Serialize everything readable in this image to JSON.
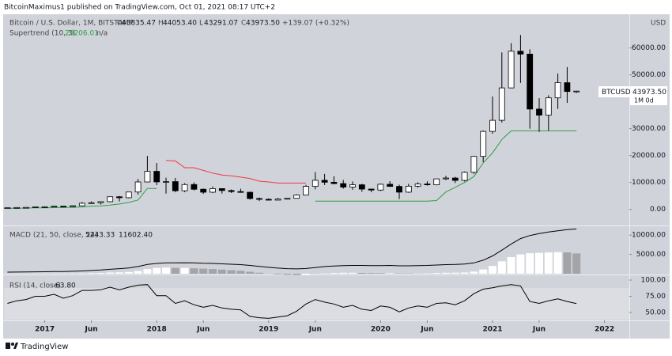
{
  "header": {
    "published": "BitcoinMaximus1 published on TradingView.com, Oct 01, 2021 08:17 UTC+2"
  },
  "footer": {
    "brand": "TradingView"
  },
  "chart_data": [
    {
      "type": "candlestick",
      "title": "Bitcoin / U.S. Dollar, 1M, BITSTAMP",
      "ohlc": [
        {
          "label": "O",
          "value": "43835.47"
        },
        {
          "label": "H",
          "value": "44053.40"
        },
        {
          "label": "L",
          "value": "43291.07"
        },
        {
          "label": "C",
          "value": "43973.50"
        }
      ],
      "change": "+139.07 (+0.32%)",
      "currency": "USD",
      "price_label": {
        "symbol": "BTCUSD",
        "value": "43973.50",
        "interval": "1M 0d"
      },
      "up_color": "#ffffff",
      "down_color": "#000000",
      "x": [
        "2016-09",
        "2016-10",
        "2016-11",
        "2016-12",
        "2017-01",
        "2017-02",
        "2017-03",
        "2017-04",
        "2017-05",
        "2017-06",
        "2017-07",
        "2017-08",
        "2017-09",
        "2017-10",
        "2017-11",
        "2017-12",
        "2018-01",
        "2018-02",
        "2018-03",
        "2018-04",
        "2018-05",
        "2018-06",
        "2018-07",
        "2018-08",
        "2018-09",
        "2018-10",
        "2018-11",
        "2018-12",
        "2019-01",
        "2019-02",
        "2019-03",
        "2019-04",
        "2019-05",
        "2019-06",
        "2019-07",
        "2019-08",
        "2019-09",
        "2019-10",
        "2019-11",
        "2019-12",
        "2020-01",
        "2020-02",
        "2020-03",
        "2020-04",
        "2020-05",
        "2020-06",
        "2020-07",
        "2020-08",
        "2020-09",
        "2020-10",
        "2020-11",
        "2020-12",
        "2021-01",
        "2021-02",
        "2021-03",
        "2021-04",
        "2021-05",
        "2021-06",
        "2021-07",
        "2021-08",
        "2021-09",
        "2021-10"
      ],
      "open": [
        573,
        609,
        698,
        743,
        963,
        966,
        1190,
        1071,
        1348,
        2286,
        2480,
        2875,
        4703,
        4338,
        6468,
        10200,
        14156,
        10221,
        10326,
        6925,
        9243,
        7486,
        6390,
        7730,
        7025,
        6625,
        6370,
        4040,
        3740,
        3457,
        3854,
        4105,
        5350,
        8560,
        10820,
        10090,
        9600,
        8290,
        9150,
        7550,
        7195,
        9350,
        8540,
        6410,
        8630,
        9450,
        9140,
        11350,
        11660,
        10780,
        13800,
        19700,
        28990,
        33110,
        45160,
        58800,
        57720,
        37300,
        35040,
        41460,
        47100,
        43835.47
      ],
      "high": [
        628,
        720,
        755,
        975,
        1150,
        1200,
        1290,
        1424,
        2760,
        2980,
        2916,
        4736,
        4979,
        6470,
        11300,
        19870,
        17250,
        11790,
        11700,
        9750,
        9990,
        7780,
        8507,
        7760,
        7400,
        7680,
        6615,
        4400,
        4110,
        4210,
        4120,
        5620,
        9100,
        13880,
        13200,
        12340,
        10950,
        10370,
        9500,
        7750,
        9580,
        10500,
        9190,
        9480,
        10080,
        10430,
        11440,
        12470,
        12080,
        14100,
        19850,
        29300,
        41950,
        58350,
        61800,
        64850,
        59500,
        41330,
        42400,
        50500,
        52900,
        44053.4
      ],
      "low": [
        570,
        605,
        681,
        742,
        751,
        918,
        891,
        1058,
        1348,
        2100,
        1830,
        2668,
        2972,
        4110,
        5500,
        10130,
        9035,
        5873,
        6430,
        6430,
        7050,
        5750,
        6070,
        5880,
        6100,
        6200,
        3650,
        3120,
        3320,
        3350,
        3700,
        4080,
        5330,
        7460,
        9050,
        9320,
        7700,
        7300,
        6520,
        6430,
        6850,
        8450,
        3850,
        6150,
        8100,
        8830,
        8970,
        10900,
        9820,
        10370,
        13200,
        17600,
        28130,
        32300,
        45000,
        47000,
        30000,
        28800,
        29280,
        37330,
        39600,
        43291.07
      ],
      "close": [
        609,
        698,
        743,
        963,
        966,
        1190,
        1071,
        1348,
        2286,
        2480,
        2875,
        4703,
        4338,
        6468,
        10200,
        14156,
        10221,
        10326,
        6925,
        9243,
        7486,
        6390,
        7730,
        7025,
        6625,
        6370,
        4040,
        3740,
        3457,
        3854,
        4105,
        5350,
        8560,
        10820,
        10090,
        9600,
        8290,
        9150,
        7550,
        7195,
        9350,
        8540,
        6410,
        8630,
        9450,
        9140,
        11350,
        11660,
        10780,
        13800,
        19700,
        28990,
        33110,
        45160,
        58800,
        57720,
        37300,
        35040,
        41460,
        47100,
        43830,
        43973.5
      ],
      "indicator": {
        "name": "Supertrend (10, 3)",
        "value_label": "29206.01",
        "extra": "n/a",
        "series": [
          {
            "color": "#2f9e44",
            "values": [
              400,
              450,
              500,
              560,
              600,
              650,
              700,
              750,
              900,
              1200,
              1300,
              1600,
              2000,
              2600,
              3500,
              7800,
              7800,
              null,
              null,
              null,
              null,
              null,
              null,
              null,
              null,
              null,
              null,
              null,
              null,
              null,
              null,
              null,
              null,
              3100,
              3100,
              3100,
              3100,
              3100,
              3100,
              3100,
              3100,
              3100,
              3100,
              3100,
              3100,
              3100,
              3300,
              6500,
              8200,
              10000,
              12200,
              17300,
              21000,
              26000,
              29206.01,
              29206.01,
              29206.01,
              29206.01,
              29206.01,
              29206.01,
              29206.01,
              29206.01
            ]
          },
          {
            "color": "#f23645",
            "values": [
              null,
              null,
              null,
              null,
              null,
              null,
              null,
              null,
              null,
              null,
              null,
              null,
              null,
              null,
              null,
              null,
              null,
              18200,
              18000,
              15500,
              15500,
              14500,
              13500,
              12800,
              12500,
              12000,
              11500,
              10500,
              10200,
              9800,
              9800,
              9800,
              9800,
              null,
              null,
              null,
              null,
              null,
              null,
              null,
              null,
              null,
              null,
              null,
              null,
              null,
              null,
              null,
              null,
              null,
              null,
              null,
              null,
              null,
              null,
              null,
              null,
              null,
              null,
              null,
              null,
              null
            ]
          }
        ]
      },
      "ylim": [
        -5970,
        72540
      ],
      "yticks": [
        {
          "value": 0,
          "label": "0.00"
        },
        {
          "value": 10000,
          "label": "10000.00"
        },
        {
          "value": 20000,
          "label": "20000.00"
        },
        {
          "value": 30000,
          "label": "30000.00"
        },
        {
          "value": 50000,
          "label": "50000.00"
        },
        {
          "value": 60000,
          "label": "60000.00"
        }
      ],
      "xticks": [
        {
          "value": "2017-01",
          "label": "2017"
        },
        {
          "value": "2017-06",
          "label": "Jun"
        },
        {
          "value": "2018-01",
          "label": "2018"
        },
        {
          "value": "2018-06",
          "label": "Jun"
        },
        {
          "value": "2019-01",
          "label": "2019"
        },
        {
          "value": "2019-06",
          "label": "Jun"
        },
        {
          "value": "2020-01",
          "label": "2020"
        },
        {
          "value": "2020-06",
          "label": "Jun"
        },
        {
          "value": "2021-01",
          "label": "2021"
        },
        {
          "value": "2021-06",
          "label": "Jun"
        },
        {
          "value": "2022-01",
          "label": "2022"
        }
      ]
    },
    {
      "type": "macd",
      "title": "MACD (21, 50, close, 24)",
      "histogram": {
        "value_label": "5243.33",
        "rising_color": "#ffffff",
        "falling_color": "#a3a3a8",
        "values": [
          20,
          30,
          30,
          40,
          40,
          50,
          60,
          80,
          120,
          160,
          200,
          300,
          350,
          450,
          700,
          1200,
          1500,
          1600,
          1500,
          1500,
          1400,
          1300,
          1200,
          1050,
          900,
          750,
          500,
          250,
          0,
          -200,
          -300,
          -350,
          -250,
          -50,
          100,
          200,
          250,
          250,
          200,
          150,
          120,
          150,
          50,
          40,
          80,
          110,
          180,
          250,
          270,
          320,
          550,
          1100,
          2000,
          3200,
          4300,
          5000,
          5300,
          5400,
          5500,
          5600,
          5500,
          5243.33
        ]
      },
      "line": {
        "value_label": "11602.40",
        "color": "#000000",
        "values": [
          400,
          420,
          440,
          480,
          500,
          540,
          570,
          620,
          720,
          830,
          950,
          1150,
          1300,
          1500,
          1850,
          2400,
          2650,
          2800,
          2800,
          2850,
          2800,
          2700,
          2650,
          2550,
          2450,
          2350,
          2150,
          1900,
          1650,
          1450,
          1300,
          1250,
          1350,
          1600,
          1850,
          2000,
          2100,
          2150,
          2150,
          2100,
          2100,
          2150,
          2050,
          2050,
          2100,
          2150,
          2250,
          2350,
          2400,
          2500,
          2800,
          3500,
          4600,
          6100,
          7700,
          9100,
          9900,
          10400,
          10800,
          11100,
          11400,
          11602.4
        ]
      },
      "ylim": [
        -210,
        12290
      ],
      "yticks": [
        {
          "value": 5000,
          "label": "5000.00"
        },
        {
          "value": 10000,
          "label": "10000.00"
        }
      ]
    },
    {
      "type": "line",
      "title": "RSI (14, close)",
      "value_label": "63.80",
      "color": "#000000",
      "values": [
        64,
        68,
        70,
        75,
        75,
        78,
        72,
        76,
        84,
        84,
        85,
        89,
        85,
        89,
        92,
        93,
        76,
        76,
        64,
        68,
        62,
        58,
        61,
        57,
        55,
        54,
        44,
        42,
        41,
        43,
        45,
        52,
        63,
        70,
        66,
        63,
        58,
        61,
        55,
        53,
        60,
        58,
        51,
        57,
        60,
        58,
        64,
        65,
        62,
        68,
        79,
        86,
        88,
        91,
        93,
        91,
        67,
        64,
        68,
        71,
        67,
        63.8
      ],
      "ylim": [
        37.8,
        107.3
      ],
      "yticks": [
        {
          "value": 50,
          "label": "50.00"
        },
        {
          "value": 75,
          "label": "75.00"
        },
        {
          "value": 100,
          "label": "100.00"
        }
      ]
    }
  ]
}
